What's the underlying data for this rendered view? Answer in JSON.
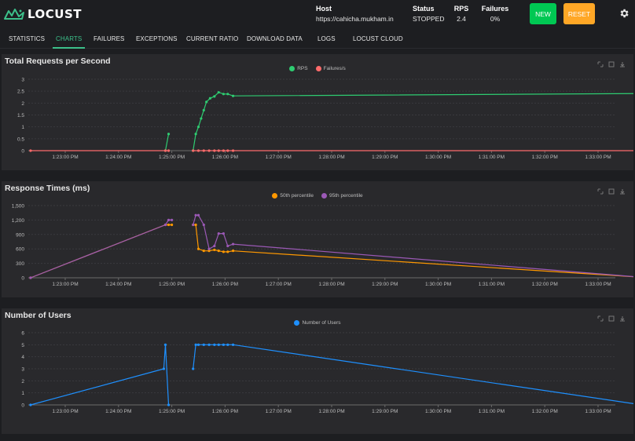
{
  "app": {
    "logo_text": "LOCUST",
    "colors": {
      "accent": "#3cc08a",
      "new": "#00c853",
      "reset": "#ffa726"
    }
  },
  "header": {
    "host_label": "Host",
    "host_value": "https://cahicha.mukham.in",
    "status_label": "Status",
    "status_value": "STOPPED",
    "rps_label": "RPS",
    "rps_value": "2.4",
    "failures_label": "Failures",
    "failures_value": "0%",
    "new_label": "NEW",
    "reset_label": "RESET",
    "settings_icon": "gear-icon"
  },
  "tabs": [
    {
      "label": "STATISTICS",
      "active": false
    },
    {
      "label": "CHARTS",
      "active": true
    },
    {
      "label": "FAILURES",
      "active": false
    },
    {
      "label": "EXCEPTIONS",
      "active": false
    },
    {
      "label": "CURRENT RATIO",
      "active": false
    },
    {
      "label": "DOWNLOAD DATA",
      "active": false
    },
    {
      "label": "LOGS",
      "active": false
    },
    {
      "label": "LOCUST CLOUD",
      "active": false
    }
  ],
  "chart_data": [
    {
      "type": "line",
      "title": "Total Requests per Second",
      "x_tick_labels": [
        "1:23:00 PM",
        "1:24:00 PM",
        "1:25:00 PM",
        "1:26:00 PM",
        "1:27:00 PM",
        "1:28:00 PM",
        "1:29:00 PM",
        "1:30:00 PM",
        "1:31:00 PM",
        "1:32:00 PM",
        "1:33:00 PM"
      ],
      "x_range_minutes": [
        0,
        11
      ],
      "y_tick_labels": [
        "0",
        "0.5",
        "1",
        "1.5",
        "2",
        "2.5",
        "3"
      ],
      "ylim": [
        0,
        3
      ],
      "legend_position": "top-center",
      "series": [
        {
          "name": "RPS",
          "color": "#2ecc71",
          "segments": [
            [
              [
                1.88,
                0
              ],
              [
                1.94,
                0.7
              ]
            ],
            [
              [
                2.4,
                0
              ],
              [
                2.45,
                0.7
              ],
              [
                2.5,
                1.0
              ],
              [
                2.55,
                1.35
              ],
              [
                2.6,
                1.7
              ],
              [
                2.65,
                2.05
              ],
              [
                2.72,
                2.2
              ],
              [
                2.8,
                2.28
              ],
              [
                2.88,
                2.45
              ],
              [
                2.97,
                2.38
              ],
              [
                3.05,
                2.38
              ],
              [
                3.15,
                2.3
              ],
              [
                10.83,
                2.4
              ]
            ]
          ]
        },
        {
          "name": "Failures/s",
          "color": "#ff6b6b",
          "segments": [
            [
              [
                -0.65,
                0
              ],
              [
                1.88,
                0
              ],
              [
                1.94,
                0
              ]
            ],
            [
              [
                2.4,
                0
              ],
              [
                2.5,
                0
              ],
              [
                2.6,
                0
              ],
              [
                2.7,
                0
              ],
              [
                2.8,
                0
              ],
              [
                2.88,
                0
              ],
              [
                2.97,
                0
              ],
              [
                3.05,
                0
              ],
              [
                3.15,
                0
              ],
              [
                10.83,
                0
              ]
            ]
          ]
        }
      ]
    },
    {
      "type": "line",
      "title": "Response Times (ms)",
      "x_tick_labels": [
        "1:23:00 PM",
        "1:24:00 PM",
        "1:25:00 PM",
        "1:26:00 PM",
        "1:27:00 PM",
        "1:28:00 PM",
        "1:29:00 PM",
        "1:30:00 PM",
        "1:31:00 PM",
        "1:32:00 PM",
        "1:33:00 PM"
      ],
      "x_range_minutes": [
        0,
        11
      ],
      "y_tick_labels": [
        "0",
        "300",
        "600",
        "900",
        "1,200",
        "1,500"
      ],
      "ylim": [
        0,
        1500
      ],
      "legend_position": "top-center",
      "series": [
        {
          "name": "50th percentile",
          "color": "#ff9800",
          "segments": [
            [
              [
                -0.65,
                0
              ],
              [
                1.88,
                1100
              ],
              [
                1.94,
                1100
              ],
              [
                2.0,
                1100
              ]
            ],
            [
              [
                2.4,
                1100
              ],
              [
                2.45,
                1100
              ],
              [
                2.5,
                600
              ],
              [
                2.6,
                560
              ],
              [
                2.7,
                560
              ],
              [
                2.8,
                580
              ],
              [
                2.88,
                560
              ],
              [
                2.97,
                540
              ],
              [
                3.05,
                540
              ],
              [
                3.15,
                560
              ],
              [
                10.83,
                10
              ]
            ]
          ]
        },
        {
          "name": "95th percentile",
          "color": "#9b59b6",
          "segments": [
            [
              [
                -0.65,
                0
              ],
              [
                1.88,
                1100
              ],
              [
                1.94,
                1200
              ],
              [
                2.0,
                1200
              ]
            ],
            [
              [
                2.4,
                1100
              ],
              [
                2.45,
                1300
              ],
              [
                2.5,
                1300
              ],
              [
                2.6,
                1100
              ],
              [
                2.7,
                600
              ],
              [
                2.8,
                660
              ],
              [
                2.88,
                920
              ],
              [
                2.97,
                920
              ],
              [
                3.05,
                660
              ],
              [
                3.15,
                700
              ],
              [
                10.83,
                10
              ]
            ]
          ]
        }
      ]
    },
    {
      "type": "line",
      "title": "Number of Users",
      "x_tick_labels": [
        "1:23:00 PM",
        "1:24:00 PM",
        "1:25:00 PM",
        "1:26:00 PM",
        "1:27:00 PM",
        "1:28:00 PM",
        "1:29:00 PM",
        "1:30:00 PM",
        "1:31:00 PM",
        "1:32:00 PM",
        "1:33:00 PM"
      ],
      "x_range_minutes": [
        0,
        11
      ],
      "y_tick_labels": [
        "0",
        "1",
        "2",
        "3",
        "4",
        "5",
        "6"
      ],
      "ylim": [
        0,
        6
      ],
      "legend_position": "top-center",
      "series": [
        {
          "name": "Number of Users",
          "color": "#1e90ff",
          "segments": [
            [
              [
                -0.65,
                0
              ],
              [
                1.85,
                3
              ],
              [
                1.88,
                5
              ],
              [
                1.94,
                0
              ]
            ],
            [
              [
                2.4,
                3
              ],
              [
                2.45,
                5
              ],
              [
                2.5,
                5
              ],
              [
                2.6,
                5
              ],
              [
                2.7,
                5
              ],
              [
                2.8,
                5
              ],
              [
                2.88,
                5
              ],
              [
                2.97,
                5
              ],
              [
                3.05,
                5
              ],
              [
                3.15,
                5
              ],
              [
                10.83,
                0
              ]
            ]
          ]
        }
      ]
    }
  ]
}
